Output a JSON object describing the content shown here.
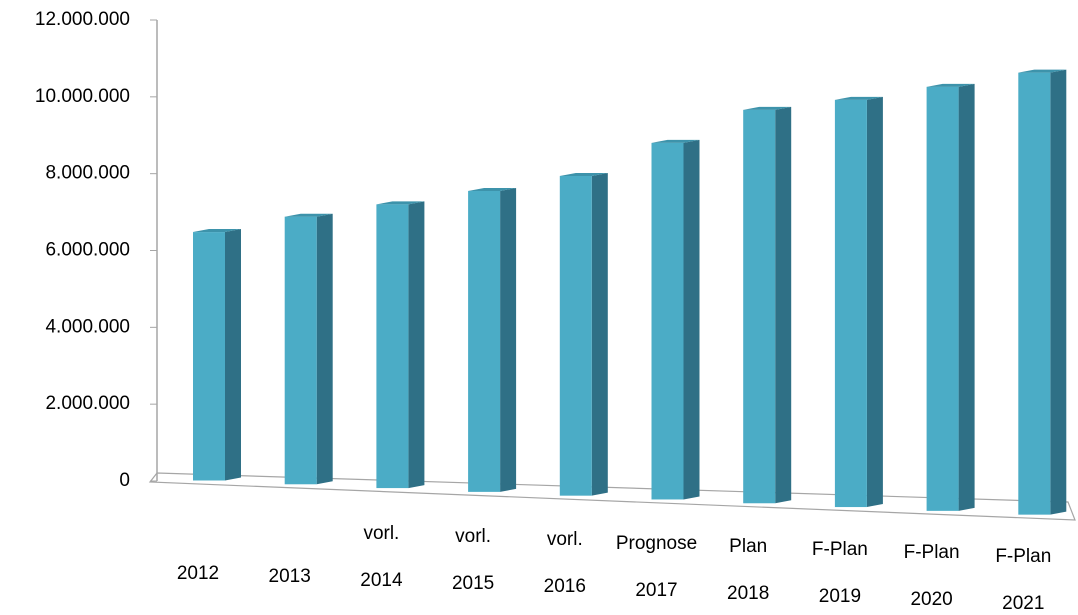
{
  "chart_data": {
    "type": "bar",
    "categories": [
      "2012",
      "2013",
      "vorl.\n2014",
      "vorl.\n2015",
      "vorl.\n2016",
      "Prognose\n2017",
      "Plan\n2018",
      "F-Plan\n2019",
      "F-Plan\n2020",
      "F-Plan\n2021"
    ],
    "values": [
      6480000,
      6880000,
      7200000,
      7550000,
      7940000,
      8800000,
      9660000,
      9920000,
      10260000,
      10630000
    ],
    "color": "#4bacc6",
    "ylim": [
      0,
      12000000
    ],
    "yticks": [
      0,
      {
        "value": 2000000,
        "label": "2.000.000"
      },
      {
        "value": 4000000,
        "label": "4.000.000"
      },
      {
        "value": 6000000,
        "label": "6.000.000"
      },
      {
        "value": 8000000,
        "label": "8.000.000"
      },
      {
        "value": 10000000,
        "label": "10.000.000"
      },
      {
        "value": 12000000,
        "label": "12.000.000"
      }
    ],
    "grid": false
  }
}
